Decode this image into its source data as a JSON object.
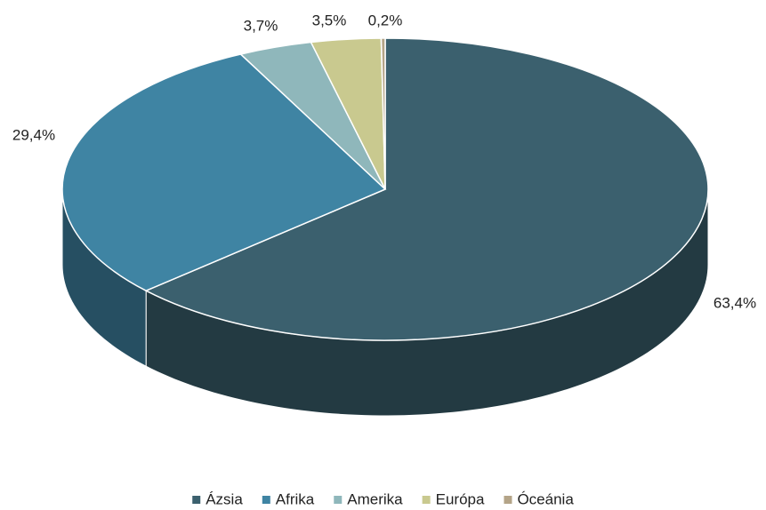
{
  "chart_data": {
    "type": "pie3d",
    "categories": [
      "Ázsia",
      "Afrika",
      "Amerika",
      "Európa",
      "Óceánia"
    ],
    "values": [
      63.4,
      29.4,
      3.7,
      3.5,
      0.2
    ],
    "value_labels": [
      "63,4%",
      "29,4%",
      "3,7%",
      "3,5%",
      "0,2%"
    ],
    "colors": [
      "#3b606e",
      "#3f84a3",
      "#8fb7bb",
      "#c9c98f",
      "#b4a488"
    ],
    "legend": "bottom"
  }
}
